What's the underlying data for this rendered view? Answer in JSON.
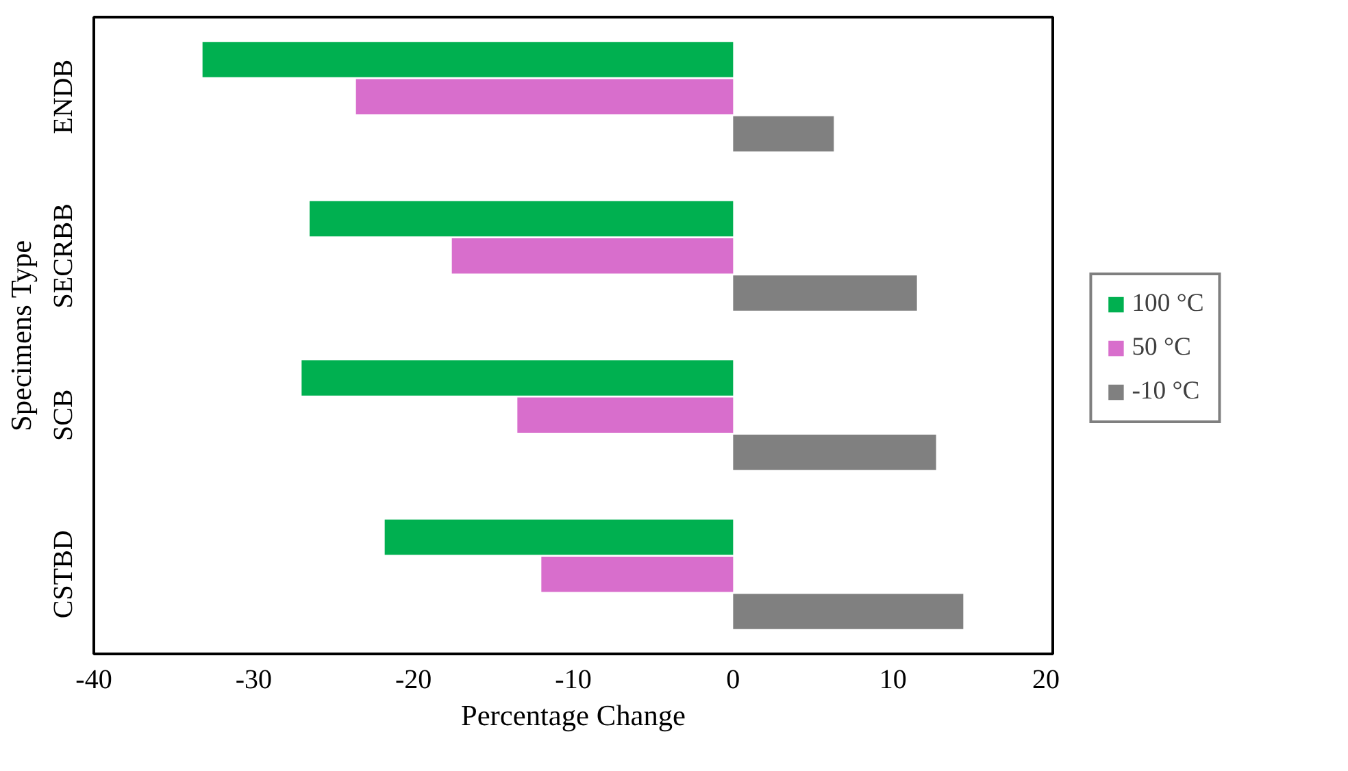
{
  "chart_data": {
    "type": "bar",
    "orientation": "horizontal",
    "xlabel": "Percentage Change",
    "ylabel": "Specimens Type",
    "categories": [
      "ENDB",
      "SECRBB",
      "SCB",
      "CSTBD"
    ],
    "series": [
      {
        "name": "100 °C",
        "color": "#00b050",
        "values": [
          -33.2,
          -26.5,
          -27.0,
          -21.8
        ]
      },
      {
        "name": "50 °C",
        "color": "#d86ecc",
        "values": [
          -23.6,
          -17.6,
          -13.5,
          -12.0
        ]
      },
      {
        "name": "-10 °C",
        "color": "#808080",
        "values": [
          6.3,
          11.5,
          12.7,
          14.4
        ]
      }
    ],
    "xlim": [
      -40,
      20
    ],
    "xticks": [
      -40,
      -30,
      -20,
      -10,
      0,
      10,
      20
    ],
    "grid": false,
    "legend": "right"
  }
}
